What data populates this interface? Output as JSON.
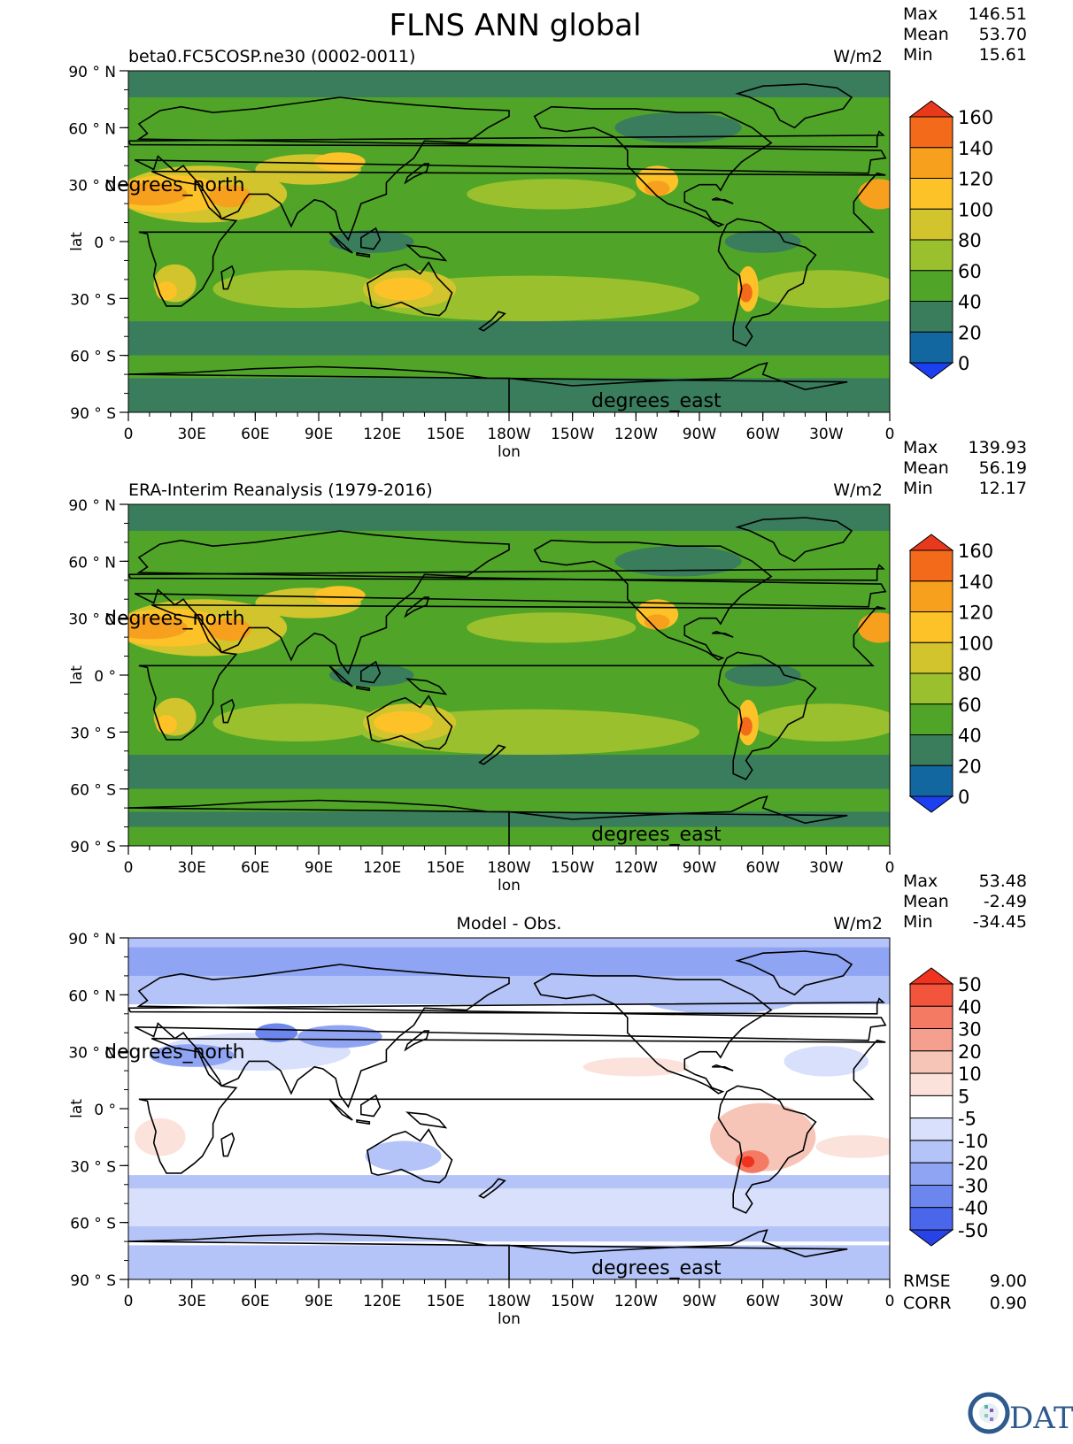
{
  "title": "FLNS ANN global",
  "panels": [
    {
      "id": "test",
      "subtitle": "beta0.FC5COSP.ne30 (0002-0011)",
      "units": "W/m2",
      "stats": [
        {
          "label": "Max",
          "value": "146.51"
        },
        {
          "label": "Mean",
          "value": "53.70"
        },
        {
          "label": "Min",
          "value": "15.61"
        }
      ],
      "colorbar": {
        "labels": [
          "160",
          "140",
          "120",
          "100",
          "80",
          "60",
          "40",
          "20",
          "0"
        ],
        "colors": [
          "#e8391c",
          "#f46a1b",
          "#f7a01e",
          "#fcc228",
          "#d2c42c",
          "#9bc02d",
          "#50a528",
          "#3a7d5c",
          "#1367a0",
          "#1c3ff0"
        ]
      },
      "field": "test"
    },
    {
      "id": "ref",
      "subtitle": "ERA-Interim Reanalysis (1979-2016)",
      "units": "W/m2",
      "stats": [
        {
          "label": "Max",
          "value": "139.93"
        },
        {
          "label": "Mean",
          "value": "56.19"
        },
        {
          "label": "Min",
          "value": "12.17"
        }
      ],
      "colorbar": {
        "labels": [
          "160",
          "140",
          "120",
          "100",
          "80",
          "60",
          "40",
          "20",
          "0"
        ],
        "colors": [
          "#e8391c",
          "#f46a1b",
          "#f7a01e",
          "#fcc228",
          "#d2c42c",
          "#9bc02d",
          "#50a528",
          "#3a7d5c",
          "#1367a0",
          "#1c3ff0"
        ]
      },
      "field": "ref"
    },
    {
      "id": "diff",
      "subtitle": "Model - Obs.",
      "units": "W/m2",
      "stats": [
        {
          "label": "Max",
          "value": "53.48"
        },
        {
          "label": "Mean",
          "value": "-2.49"
        },
        {
          "label": "Min",
          "value": "-34.45"
        }
      ],
      "colorbar": {
        "labels": [
          "50",
          "40",
          "30",
          "20",
          "10",
          "5",
          "-5",
          "-10",
          "-20",
          "-30",
          "-40",
          "-50"
        ],
        "colors": [
          "#f0321e",
          "#f2553c",
          "#f47a63",
          "#f5a08e",
          "#f7c5b8",
          "#fbe3dc",
          "#ffffff",
          "#d8e0fb",
          "#b4c3f8",
          "#8fa5f3",
          "#6d86ee",
          "#4a66ea",
          "#2743e6"
        ]
      },
      "field": "diff",
      "extra_stats": [
        {
          "label": "RMSE",
          "value": "9.00"
        },
        {
          "label": "CORR",
          "value": "0.90"
        }
      ]
    }
  ],
  "axes": {
    "ylabel": "lat",
    "xlabel": "lon",
    "lat_ticks": [
      "90 ° N",
      "60 ° N",
      "30 ° N",
      "0 °",
      "30 ° S",
      "60 ° S",
      "90 ° S"
    ],
    "lon_ticks": [
      "0",
      "30E",
      "60E",
      "90E",
      "120E",
      "150E",
      "180W",
      "150W",
      "120W",
      "90W",
      "60W",
      "30W",
      "0"
    ],
    "lat_annotation": "degrees_north",
    "lon_annotation": "degrees_east"
  },
  "chart_data": [
    {
      "type": "heatmap",
      "title": "beta0.FC5COSP.ne30 (0002-0011)",
      "units": "W/m2",
      "x_range": [
        0,
        360
      ],
      "y_range": [
        -90,
        90
      ],
      "levels": [
        0,
        20,
        40,
        60,
        80,
        100,
        120,
        140,
        160
      ],
      "stats": {
        "max": 146.51,
        "mean": 53.7,
        "min": 15.61
      }
    },
    {
      "type": "heatmap",
      "title": "ERA-Interim Reanalysis (1979-2016)",
      "units": "W/m2",
      "x_range": [
        0,
        360
      ],
      "y_range": [
        -90,
        90
      ],
      "levels": [
        0,
        20,
        40,
        60,
        80,
        100,
        120,
        140,
        160
      ],
      "stats": {
        "max": 139.93,
        "mean": 56.19,
        "min": 12.17
      }
    },
    {
      "type": "heatmap",
      "title": "Model - Obs.",
      "units": "W/m2",
      "x_range": [
        0,
        360
      ],
      "y_range": [
        -90,
        90
      ],
      "levels": [
        -50,
        -40,
        -30,
        -20,
        -10,
        -5,
        5,
        10,
        20,
        30,
        40,
        50
      ],
      "stats": {
        "max": 53.48,
        "mean": -2.49,
        "min": -34.45,
        "rmse": 9.0,
        "corr": 0.9
      }
    }
  ],
  "logo_text": "CDAT"
}
